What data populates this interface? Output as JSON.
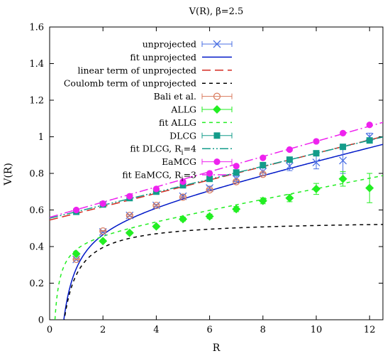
{
  "chart_data": {
    "type": "scatter",
    "title": "V(R), β=2.5",
    "xlabel": "R",
    "ylabel": "V(R)",
    "xlim": [
      0,
      12.5
    ],
    "ylim": [
      0,
      1.6
    ],
    "xticks": [
      "0",
      "2",
      "4",
      "6",
      "8",
      "10",
      "12"
    ],
    "yticks": [
      "0",
      "0.2",
      "0.4",
      "0.6",
      "0.8",
      "1",
      "1.2",
      "1.4",
      "1.6"
    ],
    "grid": false,
    "legend_position": "top-right",
    "legend": [
      {
        "label": "unprojected",
        "kind": "marker",
        "marker": "x",
        "color": "#4a6fe3"
      },
      {
        "label": "fit unprojected",
        "kind": "line",
        "dash": "solid",
        "color": "#0018c8"
      },
      {
        "label": "linear term of unprojected",
        "kind": "line",
        "dash": "long",
        "color": "#d42a20"
      },
      {
        "label": "Coulomb term of unprojected",
        "kind": "line",
        "dash": "short",
        "color": "#000000"
      },
      {
        "label": "Bali et al.",
        "kind": "marker",
        "marker": "circle-open",
        "color": "#d97a5c"
      },
      {
        "label": "ALLG",
        "kind": "marker",
        "marker": "diamond",
        "color": "#22ee22"
      },
      {
        "label": "fit ALLG",
        "kind": "line",
        "dash": "short",
        "color": "#22ee22"
      },
      {
        "label": "DLCG",
        "kind": "marker",
        "marker": "square",
        "color": "#139c8a"
      },
      {
        "label": "fit DLCG, R",
        "sub": "i",
        "suffix": "=4",
        "kind": "line",
        "dash": "dashdotdot",
        "color": "#139c8a"
      },
      {
        "label": "EaMCG",
        "kind": "marker",
        "marker": "circle",
        "color": "#ee22ee"
      },
      {
        "label": "fit EaMCG, R",
        "sub": "i",
        "suffix": "=3",
        "kind": "line",
        "dash": "dashdot",
        "color": "#ee22ee"
      }
    ],
    "series": [
      {
        "name": "unprojected",
        "marker": "x",
        "color": "#4a6fe3",
        "x": [
          1,
          2,
          3,
          4,
          5,
          6,
          7,
          8,
          9,
          10,
          11,
          12
        ],
        "y": [
          0.33,
          0.48,
          0.57,
          0.625,
          0.675,
          0.72,
          0.77,
          0.81,
          0.84,
          0.86,
          0.87,
          1.0
        ],
        "err": [
          0.004,
          0.004,
          0.005,
          0.006,
          0.008,
          0.01,
          0.015,
          0.02,
          0.025,
          0.035,
          0.07,
          0.02
        ]
      },
      {
        "name": "Bali et al.",
        "marker": "circle-open",
        "color": "#d97a5c",
        "x": [
          1,
          2,
          3,
          4,
          5,
          6,
          7,
          8
        ],
        "y": [
          0.33,
          0.485,
          0.57,
          0.625,
          0.67,
          0.71,
          0.755,
          0.795
        ],
        "err": [
          0.003,
          0.003,
          0.004,
          0.004,
          0.005,
          0.006,
          0.007,
          0.008
        ]
      },
      {
        "name": "ALLG",
        "marker": "diamond",
        "color": "#22ee22",
        "x": [
          1,
          2,
          3,
          4,
          5,
          6,
          7,
          8,
          9,
          10,
          11,
          12
        ],
        "y": [
          0.36,
          0.43,
          0.475,
          0.51,
          0.55,
          0.565,
          0.605,
          0.65,
          0.665,
          0.715,
          0.77,
          0.72
        ],
        "err": [
          0.005,
          0.006,
          0.007,
          0.008,
          0.01,
          0.012,
          0.014,
          0.016,
          0.02,
          0.03,
          0.04,
          0.08
        ]
      },
      {
        "name": "DLCG",
        "marker": "square",
        "color": "#139c8a",
        "x": [
          1,
          2,
          3,
          4,
          5,
          6,
          7,
          8,
          9,
          10,
          11,
          12
        ],
        "y": [
          0.59,
          0.63,
          0.665,
          0.7,
          0.735,
          0.77,
          0.805,
          0.845,
          0.875,
          0.91,
          0.945,
          0.98
        ],
        "err": [
          0.003,
          0.003,
          0.003,
          0.004,
          0.004,
          0.005,
          0.005,
          0.006,
          0.007,
          0.008,
          0.01,
          0.012
        ]
      },
      {
        "name": "EaMCG",
        "marker": "circle",
        "color": "#ee22ee",
        "x": [
          1,
          2,
          3,
          4,
          5,
          6,
          7,
          8,
          9,
          10,
          11,
          12
        ],
        "y": [
          0.6,
          0.635,
          0.675,
          0.715,
          0.755,
          0.8,
          0.84,
          0.885,
          0.93,
          0.975,
          1.02,
          1.065
        ],
        "err": [
          0.003,
          0.003,
          0.003,
          0.003,
          0.004,
          0.004,
          0.004,
          0.005,
          0.005,
          0.006,
          0.006,
          0.007
        ]
      }
    ],
    "curves": [
      {
        "name": "fit unprojected",
        "color": "#0018c8",
        "dash": "solid",
        "sigma": 0.035,
        "alpha": 0.3,
        "c": 0.545,
        "xmin": 0.47
      },
      {
        "name": "linear term of unprojected",
        "color": "#d42a20",
        "dash": "long",
        "sigma": 0.0365,
        "alpha": 0,
        "c": 0.545,
        "xmin": 0
      },
      {
        "name": "Coulomb term of unprojected",
        "color": "#000000",
        "dash": "short",
        "sigma": 0,
        "alpha": 0.3,
        "c": 0.545,
        "xmin": 0.47
      },
      {
        "name": "fit ALLG",
        "color": "#22ee22",
        "dash": "short",
        "sigma": 0.028,
        "alpha": 0.09,
        "c": 0.445,
        "xmin": 0.2
      },
      {
        "name": "fit DLCG",
        "color": "#139c8a",
        "dash": "dashdotdot",
        "sigma": 0.0355,
        "alpha": 0,
        "c": 0.555,
        "xmin": 0
      },
      {
        "name": "fit EaMCG",
        "color": "#ee22ee",
        "dash": "dashdot",
        "sigma": 0.0415,
        "alpha": 0,
        "c": 0.56,
        "xmin": 0
      }
    ]
  }
}
